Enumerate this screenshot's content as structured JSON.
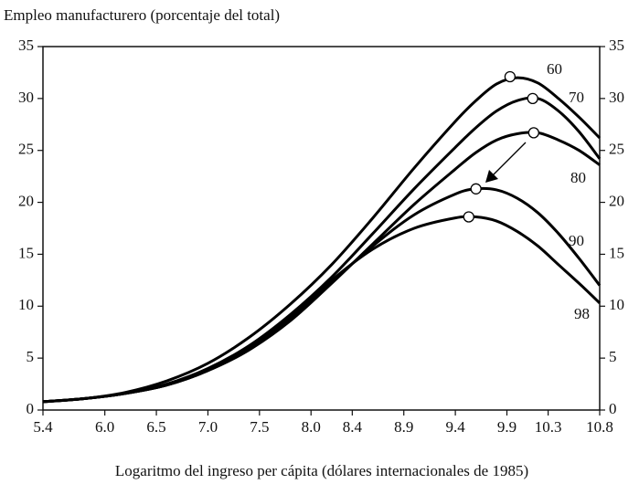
{
  "chart_data": {
    "type": "line",
    "title": "Empleo manufacturero (porcentaje del total)",
    "x_label": "Logaritmo del ingreso per cápita (dólares internacionales de 1985)",
    "x": [
      5.4,
      5.8,
      6.2,
      6.6,
      7.0,
      7.4,
      7.8,
      8.2,
      8.6,
      9.0,
      9.4,
      9.6,
      9.8,
      10.0,
      10.2,
      10.4,
      10.6,
      10.8
    ],
    "series": [
      {
        "name": "60",
        "color": "#000000",
        "values": [
          0.8,
          1.1,
          1.7,
          2.8,
          4.5,
          7.0,
          10.2,
          14.0,
          18.5,
          23.3,
          27.8,
          29.8,
          31.4,
          32.0,
          31.5,
          30.0,
          28.2,
          26.2
        ],
        "peak_x": 9.93,
        "peak_y": 32.1
      },
      {
        "name": "70",
        "color": "#000000",
        "values": [
          0.8,
          1.1,
          1.6,
          2.5,
          4.0,
          6.2,
          9.2,
          12.8,
          17.0,
          21.3,
          25.3,
          27.2,
          28.8,
          29.8,
          30.0,
          28.8,
          26.8,
          24.2
        ],
        "peak_x": 10.15,
        "peak_y": 30.0
      },
      {
        "name": "80",
        "color": "#000000",
        "values": [
          0.8,
          1.1,
          1.6,
          2.4,
          3.8,
          5.8,
          8.6,
          12.2,
          16.0,
          19.8,
          23.2,
          24.8,
          26.0,
          26.6,
          26.7,
          26.0,
          25.0,
          23.6
        ],
        "peak_x": 10.16,
        "peak_y": 26.7
      },
      {
        "name": "90",
        "color": "#000000",
        "values": [
          0.8,
          1.1,
          1.6,
          2.4,
          3.8,
          5.8,
          8.7,
          12.3,
          15.8,
          18.8,
          20.8,
          21.3,
          21.2,
          20.4,
          19.0,
          17.0,
          14.6,
          12.0
        ],
        "peak_x": 9.6,
        "peak_y": 21.3
      },
      {
        "name": "98",
        "color": "#000000",
        "values": [
          0.8,
          1.1,
          1.6,
          2.4,
          3.8,
          6.0,
          9.0,
          12.5,
          15.5,
          17.5,
          18.5,
          18.6,
          18.2,
          17.2,
          15.8,
          14.0,
          12.2,
          10.3
        ],
        "peak_x": 9.53,
        "peak_y": 18.6
      }
    ],
    "xlim": [
      5.4,
      10.8
    ],
    "xticks": [
      5.4,
      {
        "value": 6.0,
        "label": "6.0"
      },
      6.5,
      {
        "value": 7.0,
        "label": "7.0"
      },
      7.5,
      {
        "value": 8.0,
        "label": "8.0"
      },
      8.4,
      8.9,
      9.4,
      9.9,
      10.3,
      10.8
    ],
    "ylim": [
      0,
      35
    ],
    "yticks": [
      0,
      5,
      10,
      15,
      20,
      25,
      30,
      35
    ],
    "grid": false
  }
}
